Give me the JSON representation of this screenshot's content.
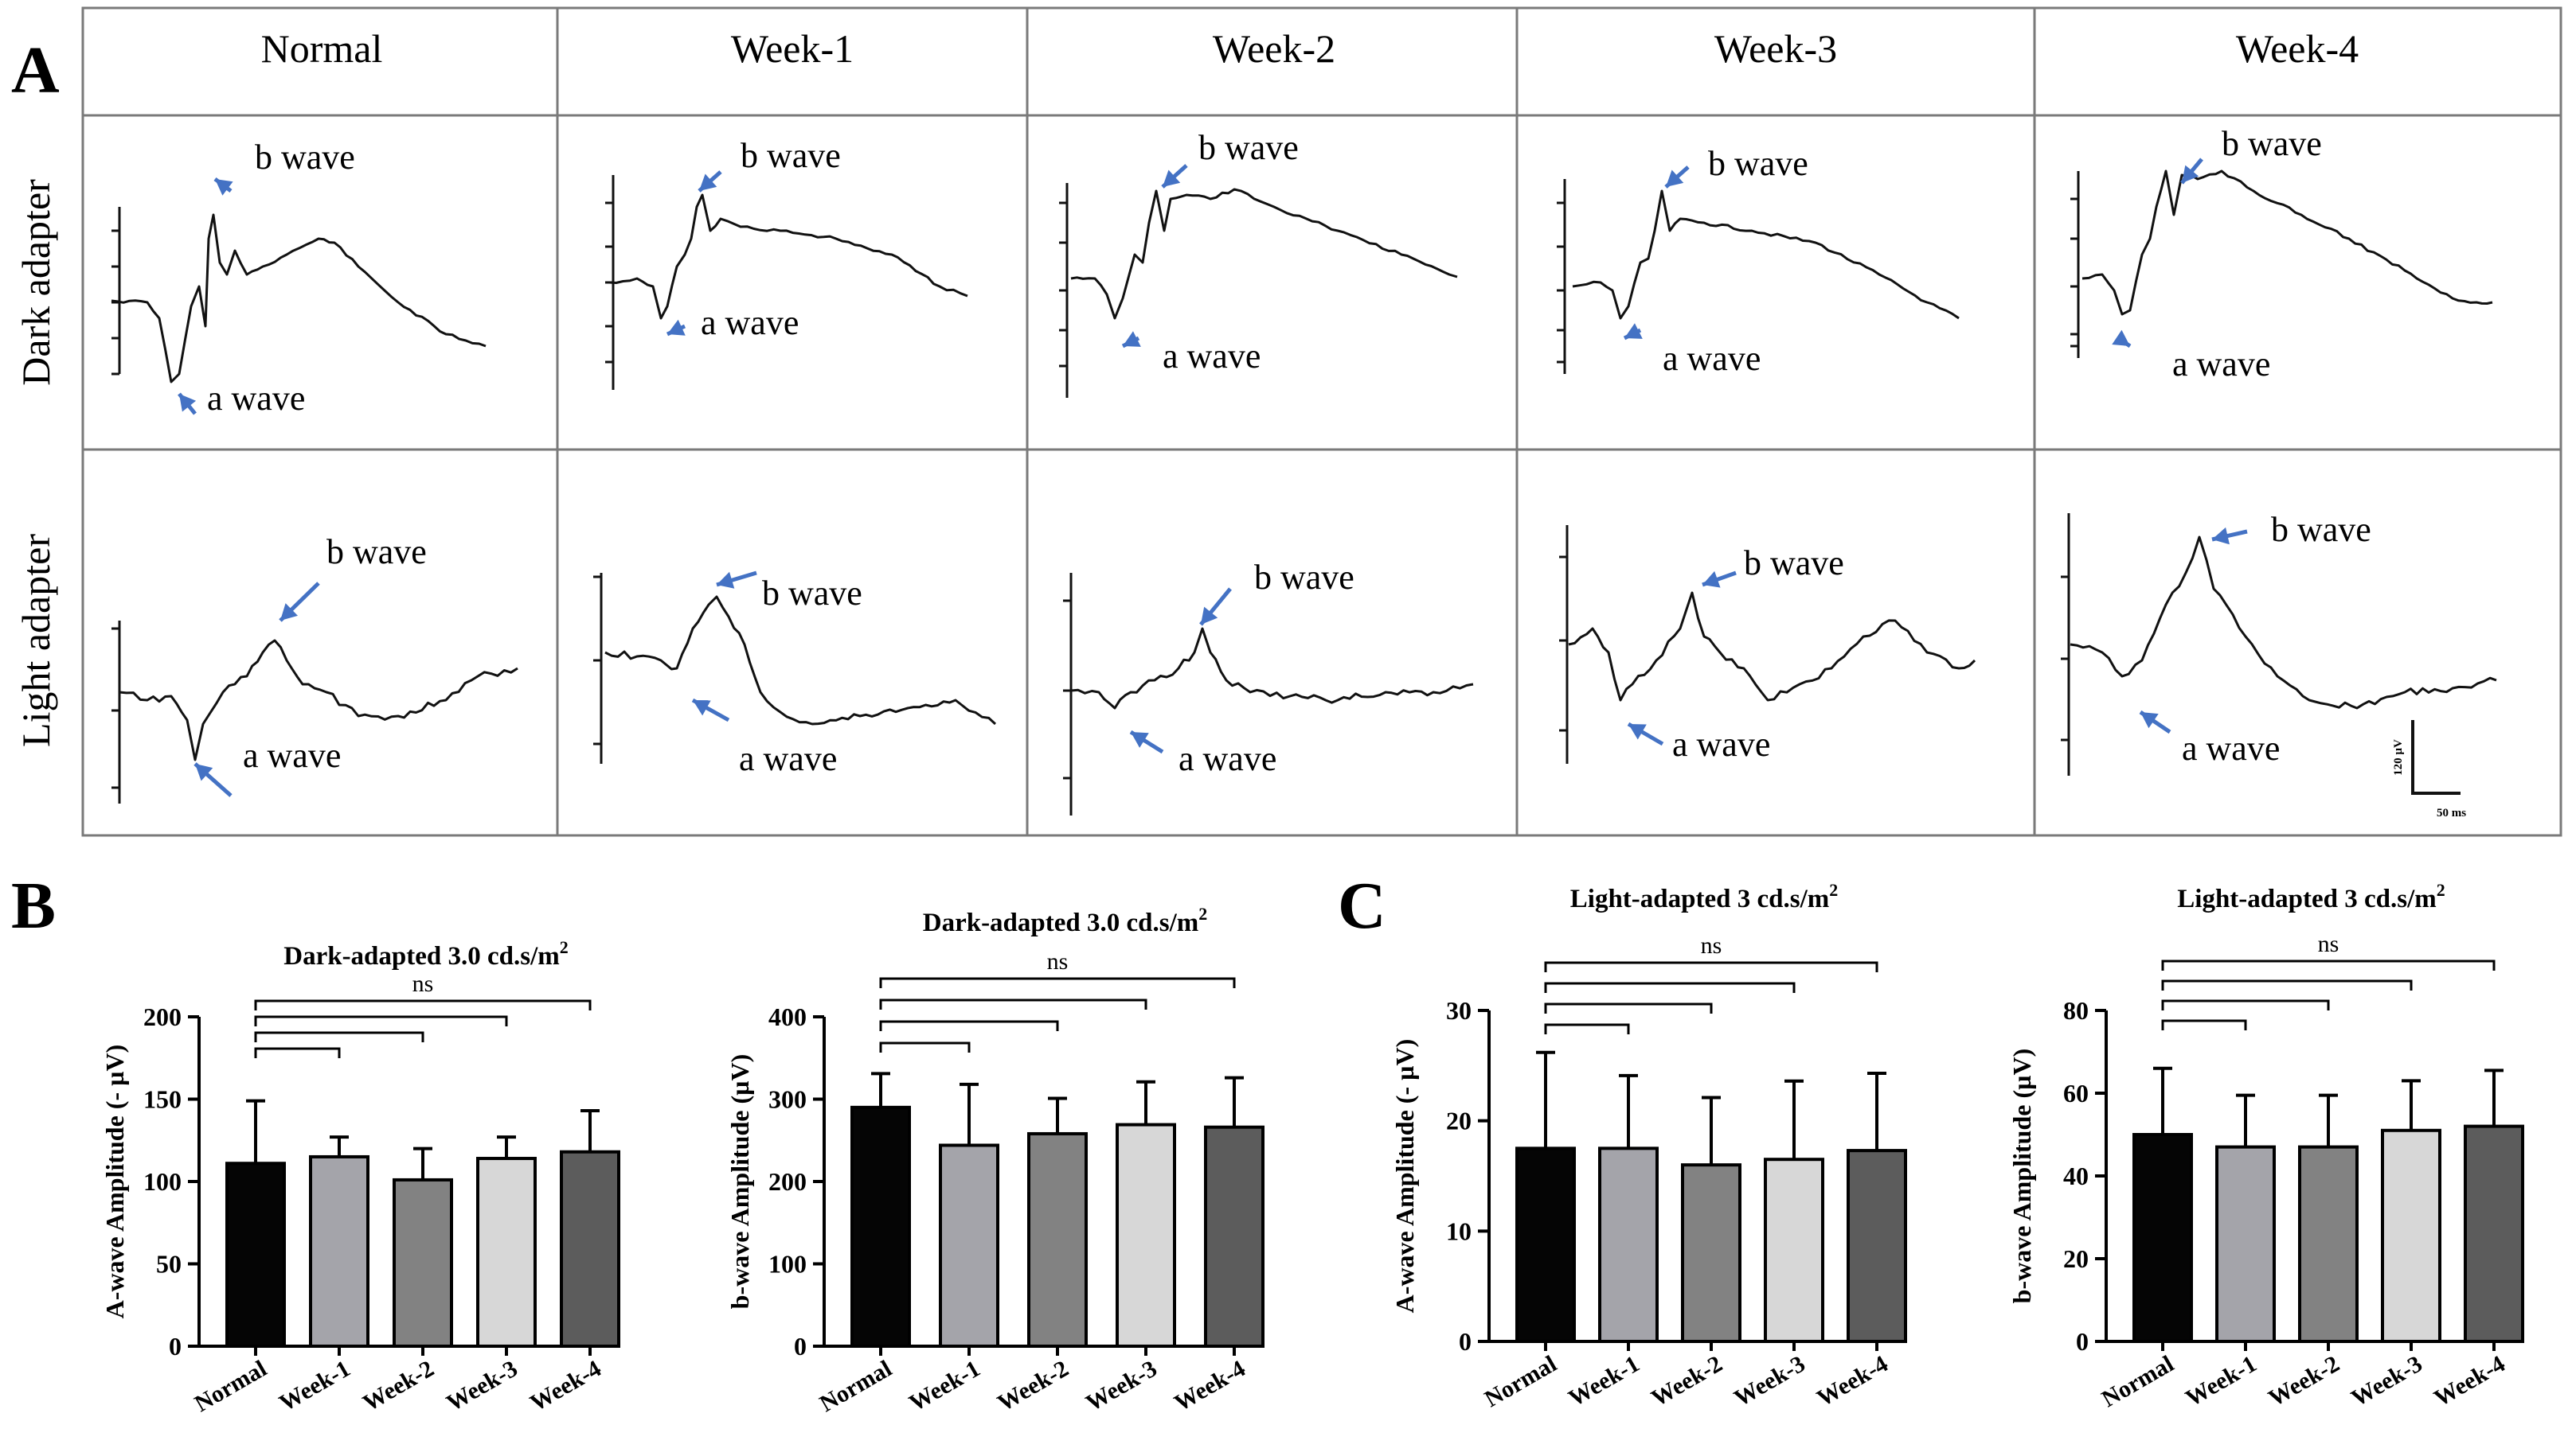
{
  "panel_letters": {
    "a": "A",
    "b": "B",
    "c": "C"
  },
  "colors": {
    "arrow": "#4472C4",
    "trace": "#111111",
    "grid": "#7a7a7a"
  },
  "panelA": {
    "columns": [
      "Normal",
      "Week-1",
      "Week-2",
      "Week-3",
      "Week-4"
    ],
    "rows": [
      "Dark adapter",
      "Light adapter"
    ],
    "b_wave_label": "b wave",
    "a_wave_label": "a wave",
    "scale_bar": {
      "amplitude": "120 µV",
      "time": "50 ms"
    }
  },
  "chart_data": [
    {
      "type": "bar",
      "panel": "B",
      "title": "Dark-adapted 3.0 cd.s/m",
      "title_sup": "2",
      "ylabel": "A-wave Amplitude (- µV)",
      "categories": [
        "Normal",
        "Week-1",
        "Week-2",
        "Week-3",
        "Week-4"
      ],
      "values": [
        111,
        115,
        101,
        114,
        118
      ],
      "errors": [
        38,
        12,
        19,
        13,
        25
      ],
      "ylim": [
        0,
        200
      ],
      "yticks": [
        0,
        50,
        100,
        150,
        200
      ],
      "bar_colors": [
        "#050505",
        "#a4a4aa",
        "#828282",
        "#d7d7d7",
        "#5c5c5c"
      ],
      "significance": "ns"
    },
    {
      "type": "bar",
      "panel": "B",
      "title": "Dark-adapted 3.0 cd.s/m",
      "title_sup": "2",
      "ylabel": "b-wave Amplitude (µV)",
      "categories": [
        "Normal",
        "Week-1",
        "Week-2",
        "Week-3",
        "Week-4"
      ],
      "values": [
        290,
        244,
        258,
        269,
        266
      ],
      "errors": [
        41,
        74,
        43,
        52,
        60
      ],
      "ylim": [
        0,
        400
      ],
      "yticks": [
        0,
        100,
        200,
        300,
        400
      ],
      "bar_colors": [
        "#050505",
        "#a4a4aa",
        "#828282",
        "#d7d7d7",
        "#5c5c5c"
      ],
      "significance": "ns"
    },
    {
      "type": "bar",
      "panel": "C",
      "title": "Light-adapted 3 cd.s/m",
      "title_sup": "2",
      "ylabel": "A-wave Amplitude (- µV)",
      "categories": [
        "Normal",
        "Week-1",
        "Week-2",
        "Week-3",
        "Week-4"
      ],
      "values": [
        17.5,
        17.5,
        16,
        16.5,
        17.3
      ],
      "errors": [
        8.7,
        6.6,
        6.1,
        7.1,
        7.0
      ],
      "ylim": [
        0,
        30
      ],
      "yticks": [
        0,
        10,
        20,
        30
      ],
      "bar_colors": [
        "#050505",
        "#a4a4aa",
        "#828282",
        "#d7d7d7",
        "#5c5c5c"
      ],
      "significance": "ns"
    },
    {
      "type": "bar",
      "panel": "C",
      "title": "Light-adapted 3 cd.s/m",
      "title_sup": "2",
      "ylabel": "b-wave Amplitude (µV)",
      "categories": [
        "Normal",
        "Week-1",
        "Week-2",
        "Week-3",
        "Week-4"
      ],
      "values": [
        50,
        47,
        47,
        51,
        52
      ],
      "errors": [
        16,
        12.5,
        12.5,
        12,
        13.5
      ],
      "ylim": [
        0,
        80
      ],
      "yticks": [
        0,
        20,
        40,
        60,
        80
      ],
      "bar_colors": [
        "#050505",
        "#a4a4aa",
        "#828282",
        "#d7d7d7",
        "#5c5c5c"
      ],
      "significance": "ns"
    }
  ]
}
